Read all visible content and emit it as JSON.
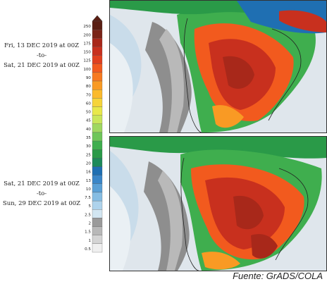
{
  "panels": [
    {
      "period_start": "Fri, 13 DEC 2019 at 00Z",
      "period_sep": "-to-",
      "period_end": "Sat, 21 DEC 2019 at 00Z"
    },
    {
      "period_start": "Sat, 21 DEC 2019 at 00Z",
      "period_sep": "-to-",
      "period_end": "Sun, 29 DEC 2019 at 00Z"
    }
  ],
  "colorbar": {
    "levels": [
      "250",
      "200",
      "175",
      "150",
      "125",
      "100",
      "90",
      "80",
      "70",
      "60",
      "50",
      "45",
      "40",
      "35",
      "30",
      "25",
      "20",
      "16",
      "13",
      "10",
      "7.5",
      "5",
      "2.5",
      "2",
      "1.5",
      "1",
      "0.5"
    ],
    "colors": [
      "#5a1f14",
      "#7a2417",
      "#a8281a",
      "#c8301e",
      "#e0401f",
      "#f25a1e",
      "#f77a21",
      "#f99a24",
      "#fbba2c",
      "#f6d43a",
      "#e8e84a",
      "#c9e65a",
      "#9fd860",
      "#6fc65a",
      "#3fae4e",
      "#2a9a48",
      "#1d8a5a",
      "#1f6fb2",
      "#3a86c8",
      "#5aa0d6",
      "#86bde3",
      "#aed3ec",
      "#d2e6f2",
      "#9a9a9a",
      "#b8b8b8",
      "#d4d4d4",
      "#efefef"
    ]
  },
  "credit": "Fuente: GrADS/COLA"
}
